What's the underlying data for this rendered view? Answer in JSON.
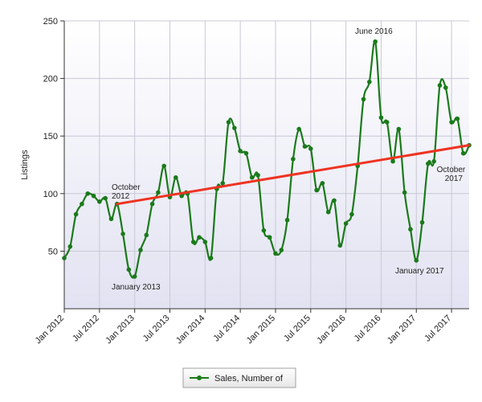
{
  "chart_data": {
    "type": "line",
    "ylabel": "Listings",
    "ylim": [
      0,
      250
    ],
    "yticks": [
      50,
      100,
      150,
      200,
      250
    ],
    "y_tick_labels": [
      "50",
      "100",
      "150",
      "200",
      "250"
    ],
    "x_tick_labels": [
      "Jan 2012",
      "Jul 2012",
      "Jan 2013",
      "Jul 2013",
      "Jan 2014",
      "Jul 2014",
      "Jan 2015",
      "Jul 2015",
      "Jan 2016",
      "Jul 2016",
      "Jan 2017",
      "Jul 2017"
    ],
    "x_tick_month_index": [
      0,
      6,
      12,
      18,
      24,
      30,
      36,
      42,
      48,
      54,
      60,
      66
    ],
    "grid": true,
    "legend_position": "bottom-center",
    "colors": {
      "series": "#1a7a1a",
      "trend": "#ee3322",
      "plot_bg_top": "#ffffff",
      "plot_bg_bottom": "#e2e2f2"
    },
    "series": [
      {
        "name": "Sales, Number of",
        "x_month_index": [
          0,
          1,
          2,
          3,
          4,
          5,
          6,
          7,
          8,
          9,
          10,
          11,
          12,
          13,
          14,
          15,
          16,
          17,
          18,
          19,
          20,
          21,
          22,
          23,
          24,
          25,
          26,
          27,
          28,
          29,
          30,
          31,
          32,
          33,
          34,
          35,
          36,
          37,
          38,
          39,
          40,
          41,
          42,
          43,
          44,
          45,
          46,
          47,
          48,
          49,
          50,
          51,
          52,
          53,
          54,
          55,
          56,
          57,
          58,
          59,
          60,
          61,
          62,
          63,
          64,
          65,
          66,
          67,
          68,
          69
        ],
        "values": [
          44,
          54,
          82,
          91,
          100,
          98,
          93,
          96,
          78,
          91,
          65,
          34,
          28,
          51,
          64,
          91,
          101,
          124,
          97,
          114,
          98,
          100,
          58,
          62,
          58,
          44,
          104,
          109,
          162,
          157,
          137,
          135,
          114,
          116,
          68,
          62,
          48,
          51,
          77,
          130,
          156,
          141,
          139,
          103,
          109,
          84,
          94,
          55,
          74,
          82,
          124,
          182,
          197,
          232,
          166,
          162,
          128,
          156,
          101,
          69,
          42,
          75,
          126,
          128,
          194,
          192,
          162,
          165,
          135,
          142
        ]
      },
      {
        "name": "Trend",
        "type": "trendline",
        "from": {
          "month_index": 9,
          "value": 91
        },
        "to": {
          "month_index": 69,
          "value": 142
        }
      }
    ],
    "annotations": [
      {
        "id": "october-2012",
        "lines": [
          "October",
          "2012"
        ]
      },
      {
        "id": "january-2013",
        "lines": [
          "January 2013"
        ]
      },
      {
        "id": "june-2016",
        "lines": [
          "June 2016"
        ]
      },
      {
        "id": "january-2017",
        "lines": [
          "January 2017"
        ]
      },
      {
        "id": "october-2017",
        "lines": [
          "October",
          "2017"
        ]
      }
    ]
  }
}
